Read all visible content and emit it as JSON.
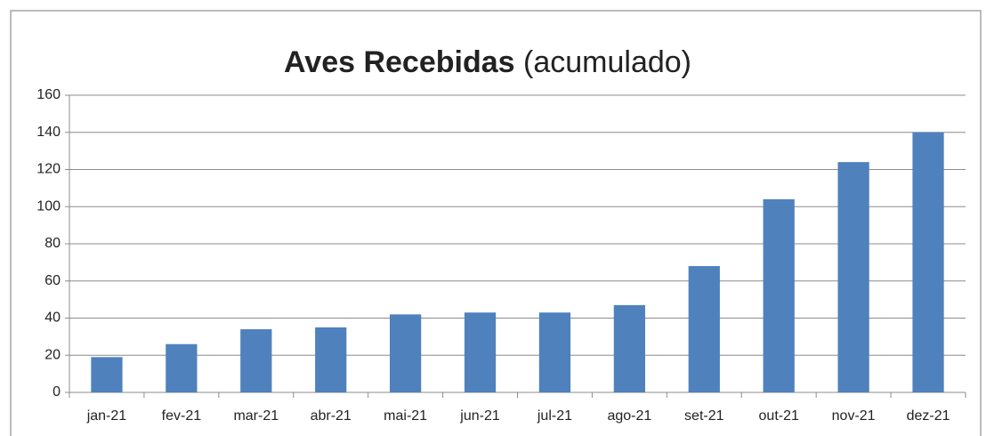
{
  "chart_data": {
    "type": "bar",
    "title": "Aves Recebidas",
    "title_suffix": "(acumulado)",
    "categories": [
      "jan-21",
      "fev-21",
      "mar-21",
      "abr-21",
      "mai-21",
      "jun-21",
      "jul-21",
      "ago-21",
      "set-21",
      "out-21",
      "nov-21",
      "dez-21"
    ],
    "values": [
      19,
      26,
      34,
      35,
      42,
      43,
      43,
      47,
      68,
      104,
      124,
      140
    ],
    "color": "#4f81bd",
    "ylim": [
      0,
      160
    ],
    "yticks": [
      0,
      20,
      40,
      60,
      80,
      100,
      120,
      140,
      160
    ],
    "grid": true
  }
}
